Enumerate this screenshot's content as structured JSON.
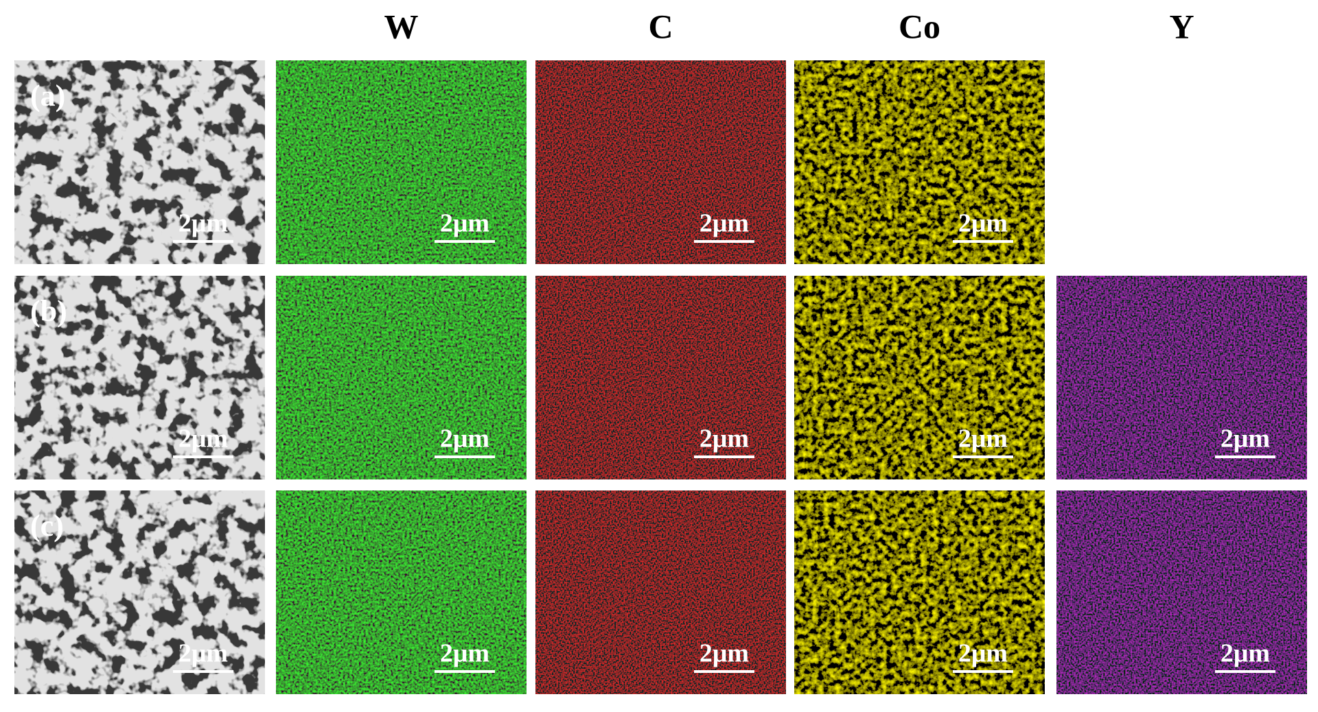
{
  "header": {
    "columns": [
      "W",
      "C",
      "Co",
      "Y"
    ]
  },
  "rows": [
    {
      "label": "(a)",
      "panels": [
        {
          "scale": "2μm"
        },
        {
          "scale": "2μm"
        },
        {
          "scale": "2μm"
        },
        {
          "scale": "2μm"
        }
      ]
    },
    {
      "label": "(b)",
      "panels": [
        {
          "scale": "2μm"
        },
        {
          "scale": "2μm"
        },
        {
          "scale": "2μm"
        },
        {
          "scale": "2μm"
        },
        {
          "scale": "2μm"
        }
      ]
    },
    {
      "label": "(c)",
      "panels": [
        {
          "scale": "2μm"
        },
        {
          "scale": "2μm"
        },
        {
          "scale": "2μm"
        },
        {
          "scale": "2μm"
        },
        {
          "scale": "2μm"
        }
      ]
    }
  ]
}
